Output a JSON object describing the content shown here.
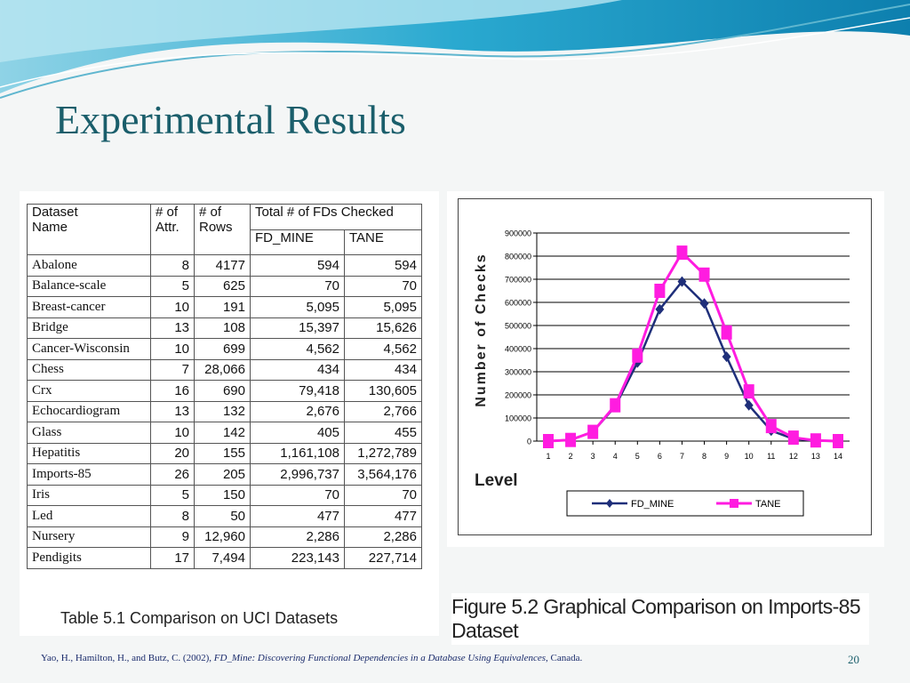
{
  "slide": {
    "title": "Experimental Results",
    "page_number": "20",
    "reference": {
      "prefix": "Yao, H., Hamilton, H., and Butz, C. (2002), ",
      "italic": "FD_Mine: Discovering Functional Dependencies in a Database Using Equivalences",
      "suffix": ", Canada."
    }
  },
  "table": {
    "caption": "Table 5.1 Comparison on UCI Datasets",
    "headers": {
      "dataset_line1": "Dataset",
      "dataset_line2": "Name",
      "attr_line1": "# of",
      "attr_line2": "Attr.",
      "rows_line1": "#  of",
      "rows_line2": "Rows",
      "total": "Total #  of FDs Checked",
      "fdmine": "FD_MINE",
      "tane": "TANE"
    },
    "rows": [
      {
        "name": "Abalone",
        "attr": "8",
        "rows": "4177",
        "fdmine": "594",
        "tane": "594"
      },
      {
        "name": "Balance-scale",
        "attr": "5",
        "rows": "625",
        "fdmine": "70",
        "tane": "70"
      },
      {
        "name": "Breast-cancer",
        "attr": "10",
        "rows": "191",
        "fdmine": "5,095",
        "tane": "5,095"
      },
      {
        "name": "Bridge",
        "attr": "13",
        "rows": "108",
        "fdmine": "15,397",
        "tane": "15,626"
      },
      {
        "name": "Cancer-Wisconsin",
        "attr": "10",
        "rows": "699",
        "fdmine": "4,562",
        "tane": "4,562"
      },
      {
        "name": "Chess",
        "attr": "7",
        "rows": "28,066",
        "fdmine": "434",
        "tane": "434"
      },
      {
        "name": "Crx",
        "attr": "16",
        "rows": "690",
        "fdmine": "79,418",
        "tane": "130,605"
      },
      {
        "name": "Echocardiogram",
        "attr": "13",
        "rows": "132",
        "fdmine": "2,676",
        "tane": "2,766"
      },
      {
        "name": "Glass",
        "attr": "10",
        "rows": "142",
        "fdmine": "405",
        "tane": "455"
      },
      {
        "name": "Hepatitis",
        "attr": "20",
        "rows": "155",
        "fdmine": "1,161,108",
        "tane": "1,272,789"
      },
      {
        "name": "Imports-85",
        "attr": "26",
        "rows": "205",
        "fdmine": "2,996,737",
        "tane": "3,564,176"
      },
      {
        "name": "Iris",
        "attr": "5",
        "rows": "150",
        "fdmine": "70",
        "tane": "70"
      },
      {
        "name": "Led",
        "attr": "8",
        "rows": "50",
        "fdmine": "477",
        "tane": "477"
      },
      {
        "name": "Nursery",
        "attr": "9",
        "rows": "12,960",
        "fdmine": "2,286",
        "tane": "2,286"
      },
      {
        "name": "Pendigits",
        "attr": "17",
        "rows": "7,494",
        "fdmine": "223,143",
        "tane": "227,714"
      }
    ]
  },
  "figure": {
    "caption": "Figure 5.2 Graphical Comparison on Imports-85 Dataset"
  },
  "chart_data": {
    "type": "line",
    "title": "",
    "xlabel": "Level",
    "ylabel": "Number of Checks",
    "x": [
      1,
      2,
      3,
      4,
      5,
      6,
      7,
      8,
      9,
      10,
      11,
      12,
      13,
      14
    ],
    "yticks": [
      "0",
      "100000",
      "200000",
      "300000",
      "400000",
      "500000",
      "600000",
      "700000",
      "800000",
      "900000"
    ],
    "ylim": [
      0,
      900000
    ],
    "grid": true,
    "legend": "bottom",
    "series": [
      {
        "name": "FD_MINE",
        "color": "#1f2f7a",
        "marker": "diamond",
        "values": [
          0,
          5000,
          40000,
          150000,
          340000,
          570000,
          690000,
          595000,
          365000,
          155000,
          45000,
          10000,
          2000,
          0
        ]
      },
      {
        "name": "TANE",
        "color": "#ff1ce0",
        "marker": "square",
        "values": [
          0,
          5000,
          40000,
          155000,
          370000,
          650000,
          815000,
          720000,
          470000,
          215000,
          65000,
          15000,
          3000,
          0
        ]
      }
    ]
  }
}
